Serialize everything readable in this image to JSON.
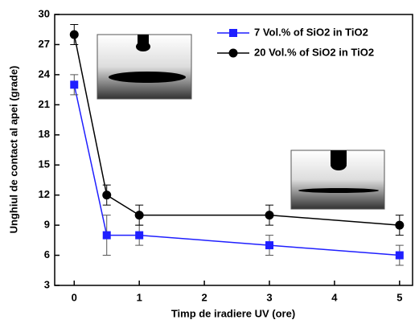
{
  "chart_data": {
    "type": "line",
    "x_label": "Timp de iradiere UV (ore)",
    "y_label": "Unghiul de contact al apei (grade)",
    "x": [
      0,
      0.5,
      1,
      3,
      5
    ],
    "series": [
      {
        "name": "7 Vol.% of SiO2 in TiO2",
        "color": "#1f1fff",
        "marker": "square",
        "values": [
          23,
          8,
          8,
          7,
          6
        ],
        "errors": [
          1,
          2,
          1,
          1,
          1
        ]
      },
      {
        "name": "20 Vol.% of SiO2 in TiO2",
        "color": "#000000",
        "marker": "circle",
        "values": [
          28,
          12,
          10,
          10,
          9
        ],
        "errors": [
          1,
          1,
          1,
          1,
          1
        ]
      }
    ],
    "xlim": [
      -0.3,
      5.2
    ],
    "xticks": [
      0,
      1,
      2,
      3,
      4,
      5
    ],
    "ylim": [
      3,
      30
    ],
    "yticks": [
      3,
      6,
      9,
      12,
      15,
      18,
      21,
      24,
      27,
      30
    ],
    "legend": "upper right"
  }
}
